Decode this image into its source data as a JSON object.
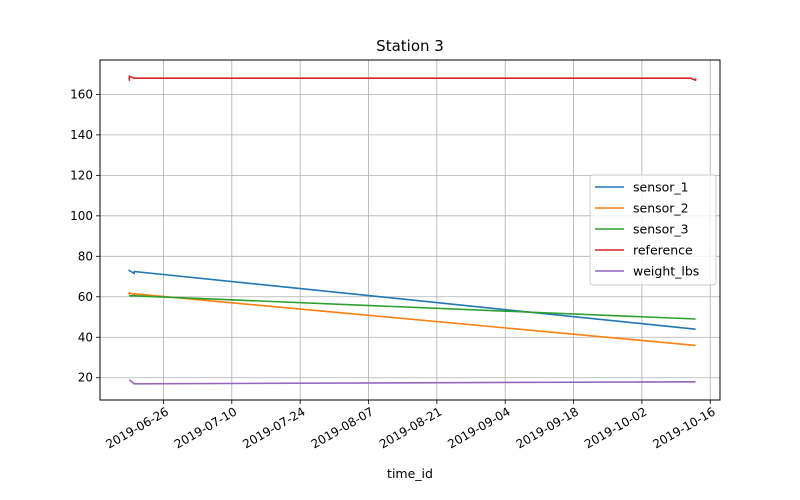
{
  "chart_data": {
    "type": "line",
    "title": "Station 3",
    "xlabel": "time_id",
    "ylabel": "",
    "x_axis_type": "date",
    "xlim": [
      "2019-06-13",
      "2019-10-18"
    ],
    "ylim": [
      9,
      177
    ],
    "x_ticks": [
      "2019-06-26",
      "2019-07-10",
      "2019-07-24",
      "2019-08-07",
      "2019-08-21",
      "2019-09-04",
      "2019-09-18",
      "2019-10-02",
      "2019-10-16"
    ],
    "y_ticks": [
      20,
      40,
      60,
      80,
      100,
      120,
      140,
      160
    ],
    "grid": true,
    "legend_position": "center-right",
    "series": [
      {
        "name": "sensor_1",
        "color": "#1f77b4",
        "points": [
          [
            "2019-06-19",
            73.5
          ],
          [
            "2019-06-19",
            73.0
          ],
          [
            "2019-06-20",
            71.5
          ],
          [
            "2019-06-20",
            72.5
          ],
          [
            "2019-10-13",
            44.0
          ]
        ]
      },
      {
        "name": "sensor_2",
        "color": "#ff7f0e",
        "points": [
          [
            "2019-06-19",
            61.0
          ],
          [
            "2019-06-19",
            62.0
          ],
          [
            "2019-06-20",
            61.0
          ],
          [
            "2019-06-20",
            61.5
          ],
          [
            "2019-10-13",
            36.0
          ]
        ]
      },
      {
        "name": "sensor_3",
        "color": "#2ca02c",
        "points": [
          [
            "2019-06-19",
            60.5
          ],
          [
            "2019-06-20",
            60.5
          ],
          [
            "2019-10-13",
            49.0
          ]
        ]
      },
      {
        "name": "reference",
        "color": "#d62728",
        "points": [
          [
            "2019-06-19",
            168.0
          ],
          [
            "2019-06-19",
            167.0
          ],
          [
            "2019-06-19",
            169.0
          ],
          [
            "2019-06-20",
            168.0
          ],
          [
            "2019-10-12",
            168.0
          ],
          [
            "2019-10-13",
            167.0
          ],
          [
            "2019-10-13",
            168.0
          ]
        ]
      },
      {
        "name": "weight_lbs",
        "color": "#9467bd",
        "points": [
          [
            "2019-06-19",
            19.0
          ],
          [
            "2019-06-20",
            17.0
          ],
          [
            "2019-10-13",
            18.0
          ]
        ]
      }
    ]
  }
}
